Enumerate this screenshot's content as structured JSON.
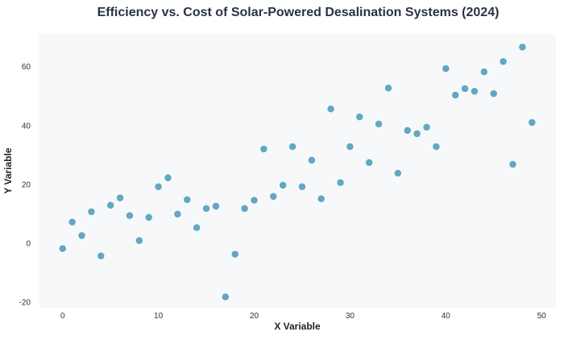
{
  "chart_data": {
    "type": "scatter",
    "title": "Efficiency vs. Cost of Solar-Powered Desalination Systems (2024)",
    "xlabel": "X Variable",
    "ylabel": "Y Variable",
    "xlim": [
      -2.5,
      51.5
    ],
    "ylim": [
      -22,
      71
    ],
    "xticks": [
      0,
      10,
      20,
      30,
      40,
      50
    ],
    "yticks": [
      -20,
      0,
      20,
      40,
      60
    ],
    "grid": false,
    "point_color": "#5ba3c2",
    "background_color": "#f7f8fa",
    "x": [
      0,
      1,
      2,
      3,
      4,
      5,
      6,
      7,
      8,
      9,
      10,
      11,
      12,
      13,
      14,
      15,
      16,
      17,
      18,
      19,
      20,
      21,
      22,
      23,
      24,
      25,
      26,
      27,
      28,
      29,
      30,
      31,
      32,
      33,
      34,
      35,
      36,
      37,
      38,
      39,
      40,
      41,
      42,
      43,
      44,
      45,
      46,
      47,
      48,
      49
    ],
    "y": [
      -1.9,
      7.1,
      2.5,
      10.6,
      -4.4,
      12.8,
      15.3,
      9.3,
      0.8,
      8.7,
      19.1,
      22.1,
      9.8,
      14.7,
      5.2,
      11.7,
      12.5,
      -18.3,
      -3.8,
      11.7,
      14.5,
      31.9,
      15.8,
      19.6,
      32.7,
      19.1,
      28.1,
      15.0,
      45.5,
      20.5,
      32.7,
      42.8,
      27.3,
      40.4,
      52.6,
      23.7,
      38.2,
      37.1,
      39.3,
      32.7,
      59.2,
      50.2,
      52.4,
      51.5,
      58.1,
      50.7,
      61.6,
      26.7,
      66.5,
      40.9
    ]
  }
}
